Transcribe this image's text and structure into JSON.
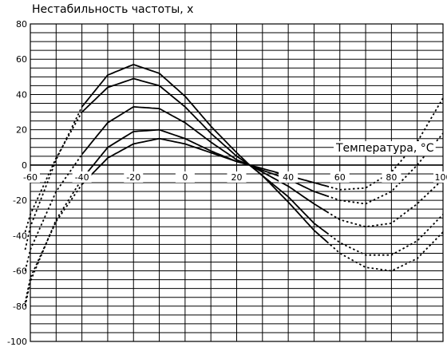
{
  "chart_data": {
    "type": "line",
    "title": "Нестабильность частоты, x",
    "xlabel": "Температура, °С",
    "ylabel": "",
    "xlim": [
      -60,
      100
    ],
    "ylim": [
      -100,
      80
    ],
    "x_ticks": [
      "-60",
      "-40",
      "-20",
      "0",
      "20",
      "40",
      "60",
      "80",
      "100"
    ],
    "y_ticks": [
      "80",
      "60",
      "40",
      "20",
      "0",
      "-20",
      "-40",
      "-60",
      "-80",
      "-100"
    ],
    "grid": true,
    "solid_range": [
      -40,
      55
    ],
    "series": [
      {
        "values_x": [
          -62,
          -60,
          -50,
          -40,
          -30,
          -20,
          -10,
          0,
          10,
          20,
          25,
          30,
          40,
          50,
          60,
          70,
          80,
          90,
          100
        ],
        "values_y": [
          -48,
          -35,
          3,
          33,
          51,
          57,
          52,
          39,
          22,
          7,
          0,
          -6,
          -21,
          -37,
          -50,
          -58,
          -60,
          -53,
          -38
        ]
      },
      {
        "values_x": [
          -62,
          -60,
          -50,
          -40,
          -30,
          -20,
          -10,
          0,
          10,
          20,
          25,
          30,
          40,
          50,
          60,
          70,
          80,
          90,
          100
        ],
        "values_y": [
          -38,
          -28,
          4,
          30,
          44,
          49,
          45,
          33,
          18,
          5,
          0,
          -6,
          -18,
          -33,
          -44,
          -51,
          -51,
          -43,
          -28
        ]
      },
      {
        "values_x": [
          -62,
          -60,
          -50,
          -40,
          -30,
          -20,
          -10,
          0,
          10,
          20,
          25,
          30,
          40,
          50,
          60,
          70,
          80,
          90,
          100
        ],
        "values_y": [
          -60,
          -48,
          -15,
          6,
          24,
          33,
          32,
          24,
          13,
          3,
          0,
          -4,
          -12,
          -22,
          -31,
          -35,
          -33,
          -22,
          -8
        ]
      },
      {
        "values_x": [
          -62,
          -60,
          -50,
          -40,
          -30,
          -20,
          -10,
          0,
          10,
          20,
          25,
          30,
          40,
          50,
          60,
          70,
          80,
          90,
          100
        ],
        "values_y": [
          -80,
          -66,
          -31,
          -8,
          10,
          19,
          20,
          15,
          8,
          2,
          0,
          -3,
          -8,
          -15,
          -20,
          -22,
          -15,
          0,
          18
        ]
      },
      {
        "values_x": [
          -62,
          -60,
          -50,
          -40,
          -30,
          -20,
          -10,
          0,
          10,
          20,
          25,
          30,
          40,
          50,
          60,
          70,
          80,
          90,
          100
        ],
        "values_y": [
          -78,
          -64,
          -32,
          -11,
          4,
          12,
          15,
          12,
          7,
          2,
          0,
          -2,
          -6,
          -10,
          -14,
          -13,
          -4,
          13,
          38
        ]
      }
    ]
  }
}
